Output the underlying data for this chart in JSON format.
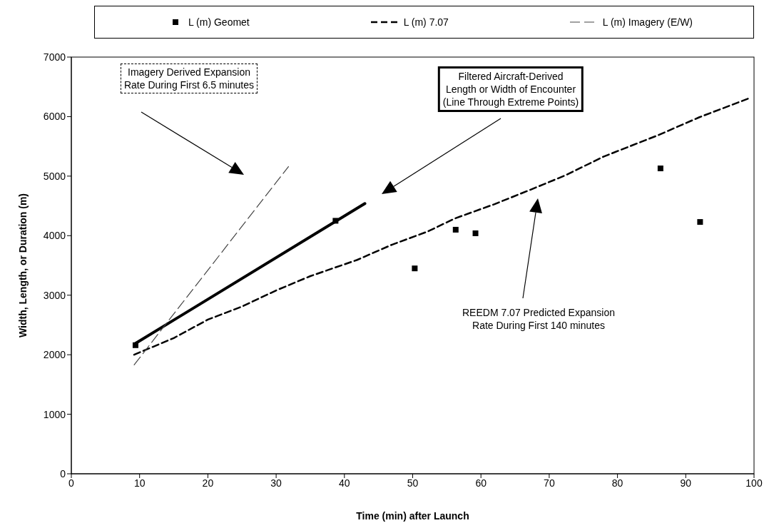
{
  "chart_data": {
    "type": "line",
    "xlabel": "Time (min) after Launch",
    "ylabel": "Width, Length, or Duration (m)",
    "xlim": [
      0,
      100
    ],
    "xticks": [
      0,
      10,
      20,
      30,
      40,
      50,
      60,
      70,
      80,
      90,
      100
    ],
    "ylim": [
      0,
      7000
    ],
    "yticks": [
      0,
      1000,
      2000,
      3000,
      4000,
      5000,
      6000,
      7000
    ],
    "grid": false,
    "legend": "top",
    "series": [
      {
        "name": "L (m) Geomet",
        "type": "scatter",
        "marker": "square",
        "color": "#000000",
        "x": [
          9.4,
          38.7,
          50.3,
          56.3,
          59.2,
          86.3,
          92.1
        ],
        "values": [
          2160,
          4250,
          3450,
          4100,
          4040,
          5130,
          4230
        ]
      },
      {
        "line_style": "solid",
        "marker": "none",
        "color": "#000000",
        "x": [
          9.4,
          43.0
        ],
        "values": [
          2190,
          4540
        ]
      },
      {
        "name": "L (m) 7.07",
        "line_style": "dashed",
        "marker": "none",
        "color": "#000000",
        "x": [
          9.2,
          15,
          20,
          25,
          30,
          35,
          41.8,
          47,
          52.2,
          56.2,
          62,
          67,
          72.3,
          78,
          86,
          92,
          99.1
        ],
        "values": [
          2000,
          2280,
          2590,
          2810,
          3080,
          3320,
          3590,
          3850,
          4070,
          4290,
          4530,
          4760,
          5010,
          5330,
          5690,
          5990,
          6300
        ]
      },
      {
        "name": "L (m) Imagery (E/W)",
        "line_style": "dashed",
        "marker": "none",
        "color": "#444444",
        "x": [
          9.2,
          31.8
        ],
        "values": [
          1830,
          5160
        ]
      }
    ],
    "annotations": [
      "Imagery Derived Expansion\nRate During First 6.5 minutes",
      "Filtered Aircraft-Derived\nLength or Width of Encounter\n(Line Through Extreme Points)",
      "REEDM 7.07 Predicted Expansion\nRate During First 140 minutes"
    ]
  }
}
